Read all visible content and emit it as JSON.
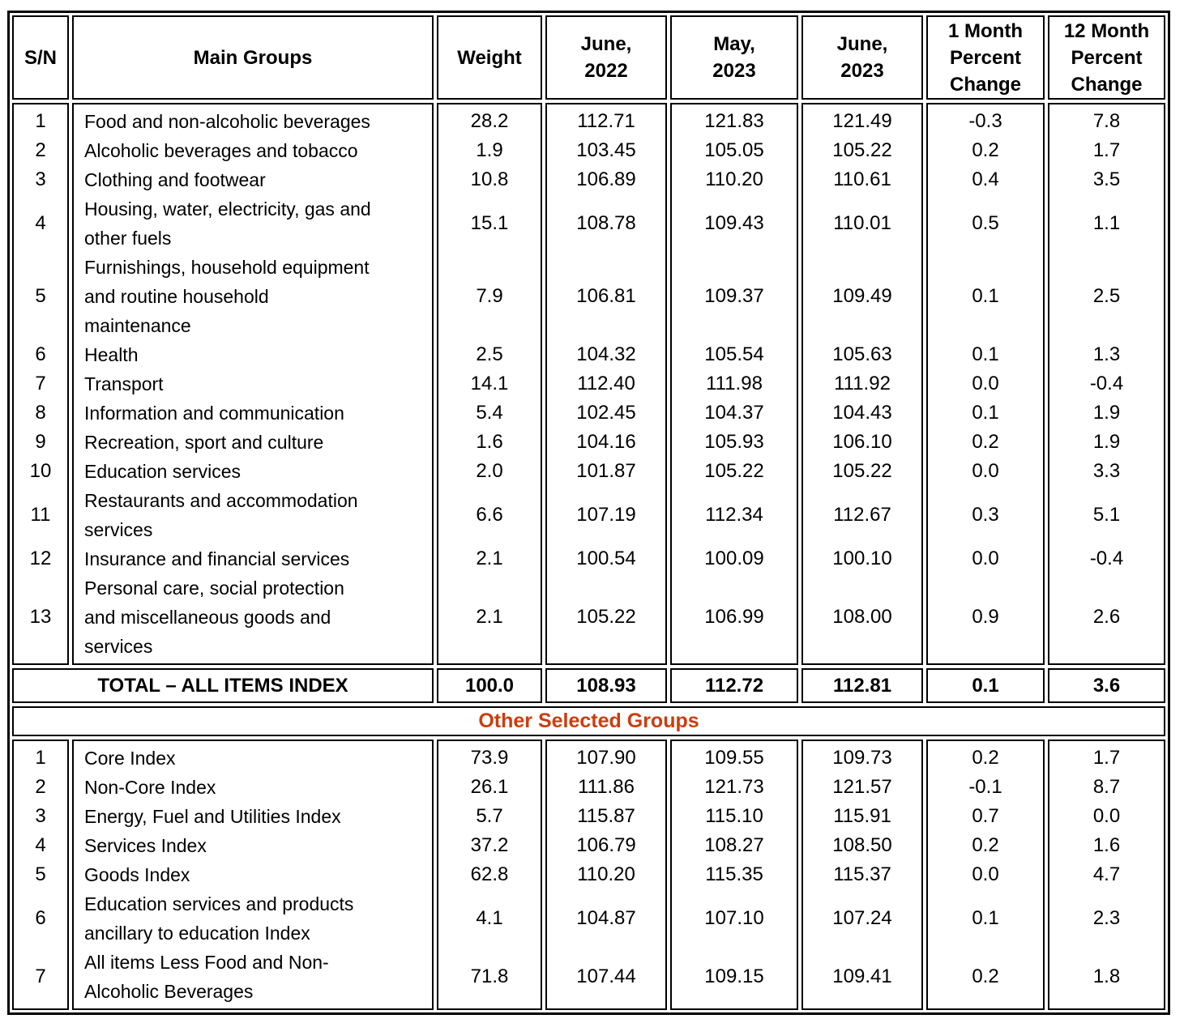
{
  "chart_data": {
    "type": "table",
    "columns": [
      "S/N",
      "Main Groups",
      "Weight",
      "June,\n2022",
      "May,\n2023",
      "June,\n2023",
      "1 Month\nPercent\nChange",
      "12 Month\nPercent\nChange"
    ],
    "main_rows": [
      {
        "sn": "1",
        "group": "Food and non-alcoholic beverages",
        "weight": "28.2",
        "jun22": "112.71",
        "may23": "121.83",
        "jun23": "121.49",
        "m1": "-0.3",
        "m12": "7.8"
      },
      {
        "sn": "2",
        "group": "Alcoholic beverages and tobacco",
        "weight": "1.9",
        "jun22": "103.45",
        "may23": "105.05",
        "jun23": "105.22",
        "m1": "0.2",
        "m12": "1.7"
      },
      {
        "sn": "3",
        "group": "Clothing and footwear",
        "weight": "10.8",
        "jun22": "106.89",
        "may23": "110.20",
        "jun23": "110.61",
        "m1": "0.4",
        "m12": "3.5"
      },
      {
        "sn": "4",
        "group": "Housing, water, electricity, gas and\nother fuels",
        "weight": "15.1",
        "jun22": "108.78",
        "may23": "109.43",
        "jun23": "110.01",
        "m1": "0.5",
        "m12": "1.1"
      },
      {
        "sn": "5",
        "group": "Furnishings, household equipment\nand routine household\nmaintenance",
        "weight": "7.9",
        "jun22": "106.81",
        "may23": "109.37",
        "jun23": "109.49",
        "m1": "0.1",
        "m12": "2.5"
      },
      {
        "sn": "6",
        "group": "Health",
        "weight": "2.5",
        "jun22": "104.32",
        "may23": "105.54",
        "jun23": "105.63",
        "m1": "0.1",
        "m12": "1.3"
      },
      {
        "sn": "7",
        "group": "Transport",
        "weight": "14.1",
        "jun22": "112.40",
        "may23": "111.98",
        "jun23": "111.92",
        "m1": "0.0",
        "m12": "-0.4"
      },
      {
        "sn": "8",
        "group": "Information and communication",
        "weight": "5.4",
        "jun22": "102.45",
        "may23": "104.37",
        "jun23": "104.43",
        "m1": "0.1",
        "m12": "1.9"
      },
      {
        "sn": "9",
        "group": "Recreation, sport and culture",
        "weight": "1.6",
        "jun22": "104.16",
        "may23": "105.93",
        "jun23": "106.10",
        "m1": "0.2",
        "m12": "1.9"
      },
      {
        "sn": "10",
        "group": "Education services",
        "weight": "2.0",
        "jun22": "101.87",
        "may23": "105.22",
        "jun23": "105.22",
        "m1": "0.0",
        "m12": "3.3"
      },
      {
        "sn": "11",
        "group": "Restaurants and accommodation\nservices",
        "weight": "6.6",
        "jun22": "107.19",
        "may23": "112.34",
        "jun23": "112.67",
        "m1": "0.3",
        "m12": "5.1"
      },
      {
        "sn": "12",
        "group": "Insurance and financial services",
        "weight": "2.1",
        "jun22": "100.54",
        "may23": "100.09",
        "jun23": "100.10",
        "m1": "0.0",
        "m12": "-0.4"
      },
      {
        "sn": "13",
        "group": "Personal care, social protection\nand miscellaneous goods and\nservices",
        "weight": "2.1",
        "jun22": "105.22",
        "may23": "106.99",
        "jun23": "108.00",
        "m1": "0.9",
        "m12": "2.6"
      }
    ],
    "total_row": {
      "label": "TOTAL – ALL ITEMS INDEX",
      "weight": "100.0",
      "jun22": "108.93",
      "may23": "112.72",
      "jun23": "112.81",
      "m1": "0.1",
      "m12": "3.6"
    },
    "section_title": "Other Selected Groups",
    "other_rows": [
      {
        "sn": "1",
        "group": "Core Index",
        "weight": "73.9",
        "jun22": "107.90",
        "may23": "109.55",
        "jun23": "109.73",
        "m1": "0.2",
        "m12": "1.7"
      },
      {
        "sn": "2",
        "group": "Non-Core Index",
        "weight": "26.1",
        "jun22": "111.86",
        "may23": "121.73",
        "jun23": "121.57",
        "m1": "-0.1",
        "m12": "8.7"
      },
      {
        "sn": "3",
        "group": "Energy, Fuel and Utilities Index",
        "weight": "5.7",
        "jun22": "115.87",
        "may23": "115.10",
        "jun23": "115.91",
        "m1": "0.7",
        "m12": "0.0"
      },
      {
        "sn": "4",
        "group": "Services Index",
        "weight": "37.2",
        "jun22": "106.79",
        "may23": "108.27",
        "jun23": "108.50",
        "m1": "0.2",
        "m12": "1.6"
      },
      {
        "sn": "5",
        "group": "Goods Index",
        "weight": "62.8",
        "jun22": "110.20",
        "may23": "115.35",
        "jun23": "115.37",
        "m1": "0.0",
        "m12": "4.7"
      },
      {
        "sn": "6",
        "group": "Education services and products\nancillary to education Index",
        "weight": "4.1",
        "jun22": "104.87",
        "may23": "107.10",
        "jun23": "107.24",
        "m1": "0.1",
        "m12": "2.3"
      },
      {
        "sn": "7",
        "group": "All items Less Food and Non-\nAlcoholic Beverages",
        "weight": "71.8",
        "jun22": "107.44",
        "may23": "109.15",
        "jun23": "109.41",
        "m1": "0.2",
        "m12": "1.8"
      }
    ],
    "styles": {
      "accent_color": "#CC3D0E",
      "border_color": "#000000"
    }
  }
}
